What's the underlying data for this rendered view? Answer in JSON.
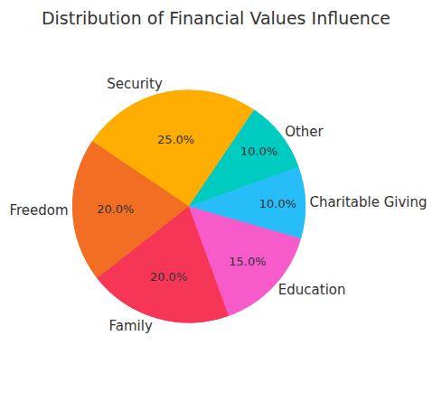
{
  "chart_data": {
    "type": "pie",
    "title": "Distribution of Financial Values Influence",
    "categories": [
      "Security",
      "Freedom",
      "Family",
      "Education",
      "Charitable Giving",
      "Other"
    ],
    "values": [
      25,
      20,
      20,
      15,
      10,
      10
    ],
    "value_labels": [
      "25.0%",
      "20.0%",
      "20.0%",
      "15.0%",
      "10.0%",
      "10.0%"
    ],
    "colors": [
      "#ffad00",
      "#f26e22",
      "#f63657",
      "#f75bc9",
      "#27bdf8",
      "#00cbc0"
    ],
    "data_labels": true
  }
}
